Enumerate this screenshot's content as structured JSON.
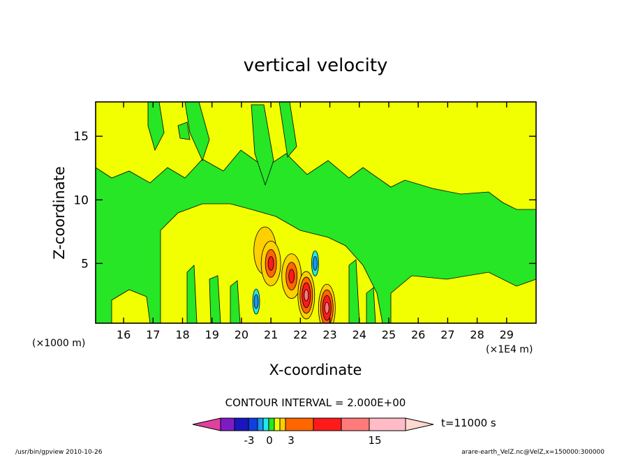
{
  "chart_data": {
    "type": "heatmap",
    "title": "vertical velocity",
    "xlabel": "X-coordinate",
    "ylabel": "Z-coordinate",
    "x_unit_left": "(×1000 m)",
    "x_unit_right": "(×1E4 m)",
    "x_ticks": [
      "16",
      "17",
      "18",
      "19",
      "20",
      "21",
      "22",
      "23",
      "24",
      "25",
      "26",
      "27",
      "28",
      "29"
    ],
    "y_ticks": [
      "5",
      "10",
      "15"
    ],
    "xlim": [
      15.05,
      30
    ],
    "ylim": [
      0.3,
      17.7
    ],
    "contour_interval_text": "CONTOUR INTERVAL = 2.000E+00",
    "time_label": "t=11000 s",
    "colorbar": {
      "colors": [
        "#e0409e",
        "#7d1cc4",
        "#1a16bd",
        "#0f3fe0",
        "#1b95f0",
        "#22e8e8",
        "#26e626",
        "#f2ff00",
        "#ffd000",
        "#ff6600",
        "#ff1a1a",
        "#ff7a7a",
        "#ffbcc6",
        "#ffd8cf"
      ],
      "tick_labels": [
        "-3",
        "0",
        "3",
        "15"
      ]
    },
    "features": [
      {
        "level": "updraft-weak",
        "x": 20.8,
        "z": 6.0
      },
      {
        "level": "updraft-moderate",
        "x": 21.0,
        "z": 5.0
      },
      {
        "level": "updraft-moderate",
        "x": 21.7,
        "z": 4.0
      },
      {
        "level": "updraft-strong",
        "x": 22.2,
        "z": 2.5
      },
      {
        "level": "updraft-strong",
        "x": 22.9,
        "z": 1.5
      },
      {
        "level": "downdraft",
        "x": 20.5,
        "z": 2.0
      },
      {
        "level": "downdraft",
        "x": 22.5,
        "z": 5.0
      }
    ],
    "footer_left": "/usr/bin/gpview  2010-10-26",
    "footer_right": "arare-earth_VelZ.nc@VelZ,x=150000:300000"
  }
}
